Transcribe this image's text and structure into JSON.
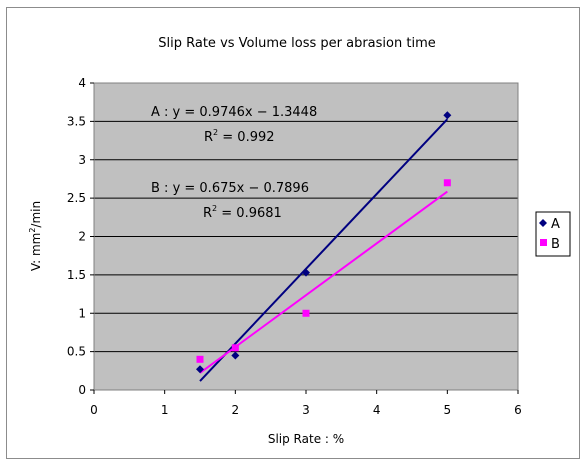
{
  "chart_data": {
    "type": "scatter",
    "title": "Slip  Rate vs Volume loss per abrasion time",
    "xlabel": "Slip Rate : %",
    "ylabel": "V: mm²/min",
    "xlim": [
      0,
      6
    ],
    "ylim": [
      0,
      4
    ],
    "x_ticks": [
      "0",
      "1",
      "2",
      "3",
      "4",
      "5",
      "6"
    ],
    "y_ticks": [
      "0",
      "0.5",
      "1",
      "1.5",
      "2",
      "2.5",
      "3",
      "3.5",
      "4"
    ],
    "grid": "horizontal",
    "legend_position": "right",
    "series": [
      {
        "name": "A",
        "color": "#000080",
        "marker": "diamond",
        "points": [
          [
            1.5,
            0.27
          ],
          [
            2.0,
            0.45
          ],
          [
            3.0,
            1.53
          ],
          [
            5.0,
            3.58
          ]
        ],
        "trendline": {
          "slope": 0.9746,
          "intercept": -1.3448,
          "x_range": [
            1.5,
            5.0
          ]
        }
      },
      {
        "name": "B",
        "color": "#ff00ff",
        "marker": "square",
        "points": [
          [
            1.5,
            0.4
          ],
          [
            2.0,
            0.55
          ],
          [
            3.0,
            1.0
          ],
          [
            5.0,
            2.7
          ]
        ],
        "trendline": {
          "slope": 0.675,
          "intercept": -0.7896,
          "x_range": [
            1.5,
            5.0
          ]
        }
      }
    ],
    "annotations": [
      {
        "equation": "A : y = 0.9746x − 1.3448",
        "r2_label": "R",
        "r2_sup": "2",
        "r2_value": " = 0.992"
      },
      {
        "equation": "B : y = 0.675x − 0.7896",
        "r2_label": "R",
        "r2_sup": "2",
        "r2_value": " = 0.9681"
      }
    ]
  }
}
